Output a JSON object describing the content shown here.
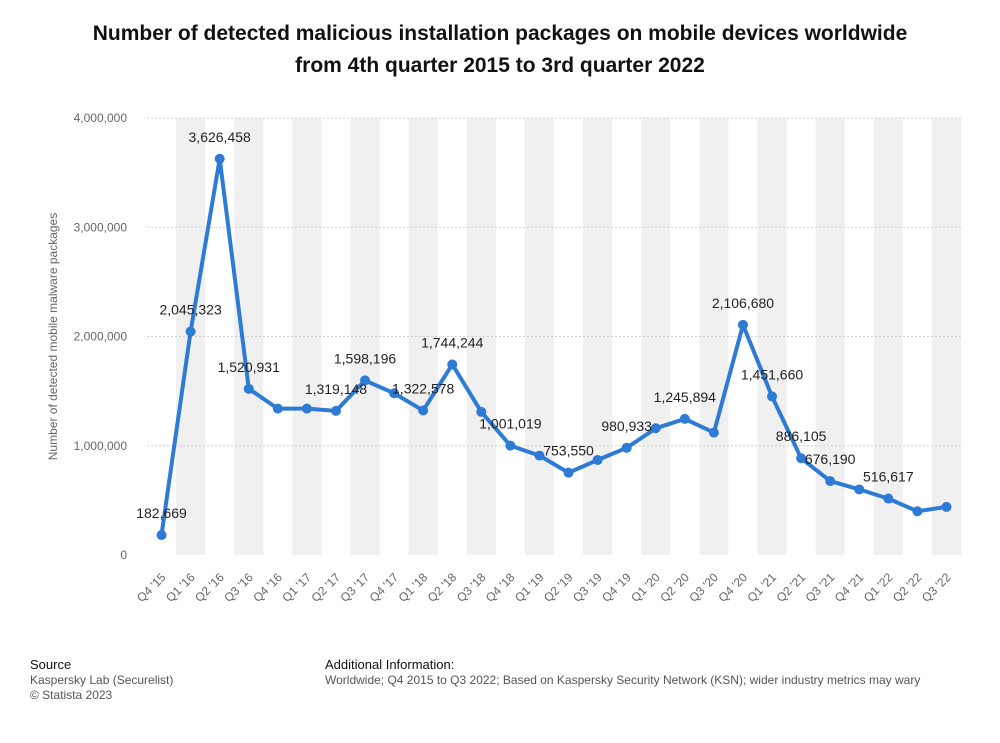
{
  "title_line1": "Number of detected malicious installation packages on mobile devices worldwide",
  "title_line2": "from 4th quarter 2015 to 3rd quarter 2022",
  "footer": {
    "source_header": "Source",
    "source_line1": "Kaspersky Lab (Securelist)",
    "source_line2": "© Statista 2023",
    "additional_header": "Additional Information:",
    "additional_text": "Worldwide; Q4 2015 to Q3 2022; Based on Kaspersky Security Network (KSN); wider industry metrics may wary"
  },
  "colors": {
    "line": "#2e7bd6",
    "band": "#f0f0f0",
    "grid": "#cfcfcf"
  },
  "chart_data": {
    "type": "line",
    "title": "Number of detected malicious installation packages on mobile devices worldwide from 4th quarter 2015 to 3rd quarter 2022",
    "ylabel": "Number of detected mobile malware packages",
    "xlabel": "",
    "ylim": [
      0,
      4000000
    ],
    "yticks": [
      0,
      1000000,
      2000000,
      3000000,
      4000000
    ],
    "ytick_labels": [
      "0",
      "1,000,000",
      "2,000,000",
      "3,000,000",
      "4,000,000"
    ],
    "grid": "horizontal dashed",
    "categories": [
      "Q4 '15",
      "Q1 '16",
      "Q2 '16",
      "Q3 '16",
      "Q4 '16",
      "Q1 '17",
      "Q2 '17",
      "Q3 '17",
      "Q4 '17",
      "Q1 '18",
      "Q2 '18",
      "Q3 '18",
      "Q4 '18",
      "Q1 '19",
      "Q2 '19",
      "Q3 '19",
      "Q4 '19",
      "Q1 '20",
      "Q2 '20",
      "Q3 '20",
      "Q4 '20",
      "Q1 '21",
      "Q2 '21",
      "Q3 '21",
      "Q4 '21",
      "Q1 '22",
      "Q2 '22",
      "Q3 '22"
    ],
    "series": [
      {
        "values": [
          182669,
          2045323,
          3626458,
          1520931,
          1340000,
          1340000,
          1319148,
          1598196,
          1480000,
          1322578,
          1744244,
          1310000,
          1001019,
          910000,
          753550,
          870000,
          980933,
          1160000,
          1245894,
          1120000,
          2106680,
          1451660,
          886105,
          676190,
          600000,
          516617,
          400000,
          440000
        ]
      }
    ],
    "data_labels": [
      {
        "index": 0,
        "text": "182,669"
      },
      {
        "index": 1,
        "text": "2,045,323"
      },
      {
        "index": 2,
        "text": "3,626,458"
      },
      {
        "index": 3,
        "text": "1,520,931"
      },
      {
        "index": 6,
        "text": "1,319,148"
      },
      {
        "index": 7,
        "text": "1,598,196"
      },
      {
        "index": 9,
        "text": "1,322,578"
      },
      {
        "index": 10,
        "text": "1,744,244"
      },
      {
        "index": 12,
        "text": "1,001,019"
      },
      {
        "index": 14,
        "text": "753,550"
      },
      {
        "index": 16,
        "text": "980,933"
      },
      {
        "index": 18,
        "text": "1,245,894"
      },
      {
        "index": 20,
        "text": "2,106,680"
      },
      {
        "index": 21,
        "text": "1,451,660"
      },
      {
        "index": 22,
        "text": "886,105"
      },
      {
        "index": 23,
        "text": "676,190"
      },
      {
        "index": 25,
        "text": "516,617"
      }
    ]
  }
}
